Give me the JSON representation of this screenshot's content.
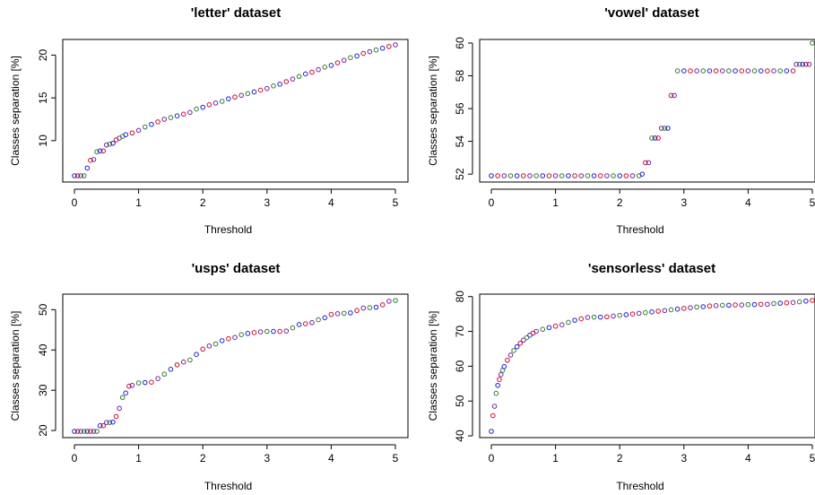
{
  "figure": {
    "background": "#ffffff"
  },
  "chart_data": [
    {
      "type": "scatter",
      "title": "'letter' dataset",
      "xlabel": "Threshold",
      "ylabel": "Classes separation [%]",
      "xlim": [
        0,
        5
      ],
      "ylim": [
        5.9,
        21.2
      ],
      "xticks": [
        0,
        1,
        2,
        3,
        4,
        5
      ],
      "yticks": [
        10,
        15,
        20
      ],
      "grid": false,
      "legend": "none",
      "marker": "open-circle",
      "colors": [
        "#1f1fd0",
        "#c8102e",
        "#7b1fa2",
        "#2e7d32"
      ],
      "series": [
        {
          "x": [
            0.0,
            0.05,
            0.1,
            0.15,
            0.2,
            0.25,
            0.3,
            0.35,
            0.4,
            0.45,
            0.5,
            0.55,
            0.6,
            0.65,
            0.7,
            0.75,
            0.8,
            0.9,
            1.0,
            1.1,
            1.2,
            1.3,
            1.4,
            1.5,
            1.6,
            1.7,
            1.8,
            1.9,
            2.0,
            2.1,
            2.2,
            2.3,
            2.4,
            2.5,
            2.6,
            2.7,
            2.8,
            2.9,
            3.0,
            3.1,
            3.2,
            3.3,
            3.4,
            3.5,
            3.6,
            3.7,
            3.8,
            3.9,
            4.0,
            4.1,
            4.2,
            4.3,
            4.4,
            4.5,
            4.6,
            4.7,
            4.8,
            4.9,
            5.0
          ],
          "y": [
            5.9,
            5.9,
            5.9,
            5.9,
            6.8,
            7.7,
            7.8,
            8.7,
            8.8,
            8.8,
            9.5,
            9.6,
            9.7,
            10.1,
            10.3,
            10.5,
            10.7,
            10.9,
            11.2,
            11.6,
            11.9,
            12.2,
            12.5,
            12.7,
            12.9,
            13.1,
            13.3,
            13.7,
            13.9,
            14.2,
            14.4,
            14.6,
            14.9,
            15.1,
            15.3,
            15.5,
            15.7,
            15.9,
            16.1,
            16.4,
            16.6,
            16.9,
            17.2,
            17.5,
            17.8,
            18.0,
            18.3,
            18.6,
            18.8,
            19.1,
            19.4,
            19.7,
            19.9,
            20.2,
            20.4,
            20.6,
            20.8,
            21.0,
            21.2
          ]
        }
      ]
    },
    {
      "type": "scatter",
      "title": "'vowel' dataset",
      "xlabel": "Threshold",
      "ylabel": "Classes separation [%]",
      "xlim": [
        0,
        5
      ],
      "ylim": [
        51.9,
        60.0
      ],
      "xticks": [
        0,
        1,
        2,
        3,
        4,
        5
      ],
      "yticks": [
        52,
        54,
        56,
        58,
        60
      ],
      "grid": false,
      "legend": "none",
      "marker": "open-circle",
      "colors": [
        "#1f1fd0",
        "#c8102e",
        "#7b1fa2",
        "#2e7d32"
      ],
      "series": [
        {
          "x": [
            0.0,
            0.1,
            0.2,
            0.3,
            0.4,
            0.5,
            0.6,
            0.7,
            0.8,
            0.9,
            1.0,
            1.1,
            1.2,
            1.3,
            1.4,
            1.5,
            1.6,
            1.7,
            1.8,
            1.9,
            2.0,
            2.1,
            2.2,
            2.3,
            2.35,
            2.4,
            2.45,
            2.5,
            2.55,
            2.6,
            2.65,
            2.7,
            2.75,
            2.8,
            2.85,
            2.9,
            3.0,
            3.1,
            3.2,
            3.3,
            3.4,
            3.5,
            3.6,
            3.7,
            3.8,
            3.9,
            4.0,
            4.1,
            4.2,
            4.3,
            4.4,
            4.5,
            4.6,
            4.7,
            4.75,
            4.8,
            4.85,
            4.9,
            4.95,
            5.0
          ],
          "y": [
            51.9,
            51.9,
            51.9,
            51.9,
            51.9,
            51.9,
            51.9,
            51.9,
            51.9,
            51.9,
            51.9,
            51.9,
            51.9,
            51.9,
            51.9,
            51.9,
            51.9,
            51.9,
            51.9,
            51.9,
            51.9,
            51.9,
            51.9,
            51.9,
            52.0,
            52.7,
            52.7,
            54.2,
            54.2,
            54.2,
            54.8,
            54.8,
            54.8,
            56.8,
            56.8,
            58.3,
            58.3,
            58.3,
            58.3,
            58.3,
            58.3,
            58.3,
            58.3,
            58.3,
            58.3,
            58.3,
            58.3,
            58.3,
            58.3,
            58.3,
            58.3,
            58.3,
            58.3,
            58.3,
            58.7,
            58.7,
            58.7,
            58.7,
            58.7,
            60.0
          ]
        }
      ]
    },
    {
      "type": "scatter",
      "title": "'usps' dataset",
      "xlabel": "Threshold",
      "ylabel": "Classes separation [%]",
      "xlim": [
        0,
        5
      ],
      "ylim": [
        19.8,
        52.3
      ],
      "xticks": [
        0,
        1,
        2,
        3,
        4,
        5
      ],
      "yticks": [
        20,
        30,
        40,
        50
      ],
      "grid": false,
      "legend": "none",
      "marker": "open-circle",
      "colors": [
        "#1f1fd0",
        "#c8102e",
        "#7b1fa2",
        "#2e7d32"
      ],
      "series": [
        {
          "x": [
            0.0,
            0.05,
            0.1,
            0.15,
            0.2,
            0.25,
            0.3,
            0.35,
            0.4,
            0.45,
            0.5,
            0.55,
            0.6,
            0.65,
            0.7,
            0.75,
            0.8,
            0.85,
            0.9,
            1.0,
            1.1,
            1.2,
            1.3,
            1.4,
            1.5,
            1.6,
            1.7,
            1.8,
            1.9,
            2.0,
            2.1,
            2.2,
            2.3,
            2.4,
            2.5,
            2.6,
            2.7,
            2.8,
            2.9,
            3.0,
            3.1,
            3.2,
            3.3,
            3.4,
            3.5,
            3.6,
            3.7,
            3.8,
            3.9,
            4.0,
            4.1,
            4.2,
            4.3,
            4.4,
            4.5,
            4.6,
            4.7,
            4.8,
            4.9,
            5.0
          ],
          "y": [
            19.8,
            19.8,
            19.8,
            19.8,
            19.8,
            19.8,
            19.8,
            19.8,
            21.2,
            21.2,
            22.0,
            22.0,
            22.1,
            23.5,
            25.5,
            28.2,
            29.3,
            31.0,
            31.2,
            31.8,
            31.9,
            32.0,
            32.9,
            34.0,
            35.2,
            36.3,
            37.0,
            37.5,
            38.9,
            40.2,
            41.0,
            41.5,
            42.3,
            42.8,
            43.1,
            43.8,
            44.1,
            44.3,
            44.5,
            44.6,
            44.6,
            44.6,
            44.7,
            45.5,
            46.3,
            46.5,
            46.8,
            47.5,
            48.0,
            48.8,
            49.0,
            49.1,
            49.2,
            49.8,
            50.4,
            50.5,
            50.6,
            51.2,
            52.1,
            52.3
          ]
        }
      ]
    },
    {
      "type": "scatter",
      "title": "'sensorless' dataset",
      "xlabel": "Threshold",
      "ylabel": "Classes separation [%]",
      "xlim": [
        0,
        5
      ],
      "ylim": [
        41.3,
        78.9
      ],
      "xticks": [
        0,
        1,
        2,
        3,
        4,
        5
      ],
      "yticks": [
        40,
        50,
        60,
        70,
        80
      ],
      "grid": false,
      "legend": "none",
      "marker": "open-circle",
      "colors": [
        "#1f1fd0",
        "#c8102e",
        "#7b1fa2",
        "#2e7d32"
      ],
      "series": [
        {
          "x": [
            0.0,
            0.025,
            0.05,
            0.075,
            0.1,
            0.125,
            0.15,
            0.175,
            0.2,
            0.25,
            0.3,
            0.35,
            0.4,
            0.45,
            0.5,
            0.55,
            0.6,
            0.65,
            0.7,
            0.8,
            0.9,
            1.0,
            1.1,
            1.2,
            1.3,
            1.4,
            1.5,
            1.6,
            1.7,
            1.8,
            1.9,
            2.0,
            2.1,
            2.2,
            2.3,
            2.4,
            2.5,
            2.6,
            2.7,
            2.8,
            2.9,
            3.0,
            3.1,
            3.2,
            3.3,
            3.4,
            3.5,
            3.6,
            3.7,
            3.8,
            3.9,
            4.0,
            4.1,
            4.2,
            4.3,
            4.4,
            4.5,
            4.6,
            4.7,
            4.8,
            4.9,
            5.0
          ],
          "y": [
            41.3,
            45.8,
            48.5,
            52.2,
            54.5,
            56.2,
            57.6,
            58.8,
            59.9,
            61.7,
            63.2,
            64.5,
            65.6,
            66.6,
            67.5,
            68.2,
            68.9,
            69.5,
            70.0,
            70.6,
            71.1,
            71.5,
            71.9,
            72.6,
            73.2,
            73.6,
            74.0,
            74.1,
            74.1,
            74.2,
            74.4,
            74.6,
            74.8,
            75.0,
            75.2,
            75.4,
            75.6,
            75.8,
            76.0,
            76.2,
            76.4,
            76.6,
            76.8,
            77.0,
            77.1,
            77.3,
            77.4,
            77.5,
            77.5,
            77.6,
            77.6,
            77.7,
            77.7,
            77.8,
            77.8,
            78.0,
            78.1,
            78.2,
            78.3,
            78.5,
            78.7,
            78.9
          ]
        }
      ]
    }
  ]
}
